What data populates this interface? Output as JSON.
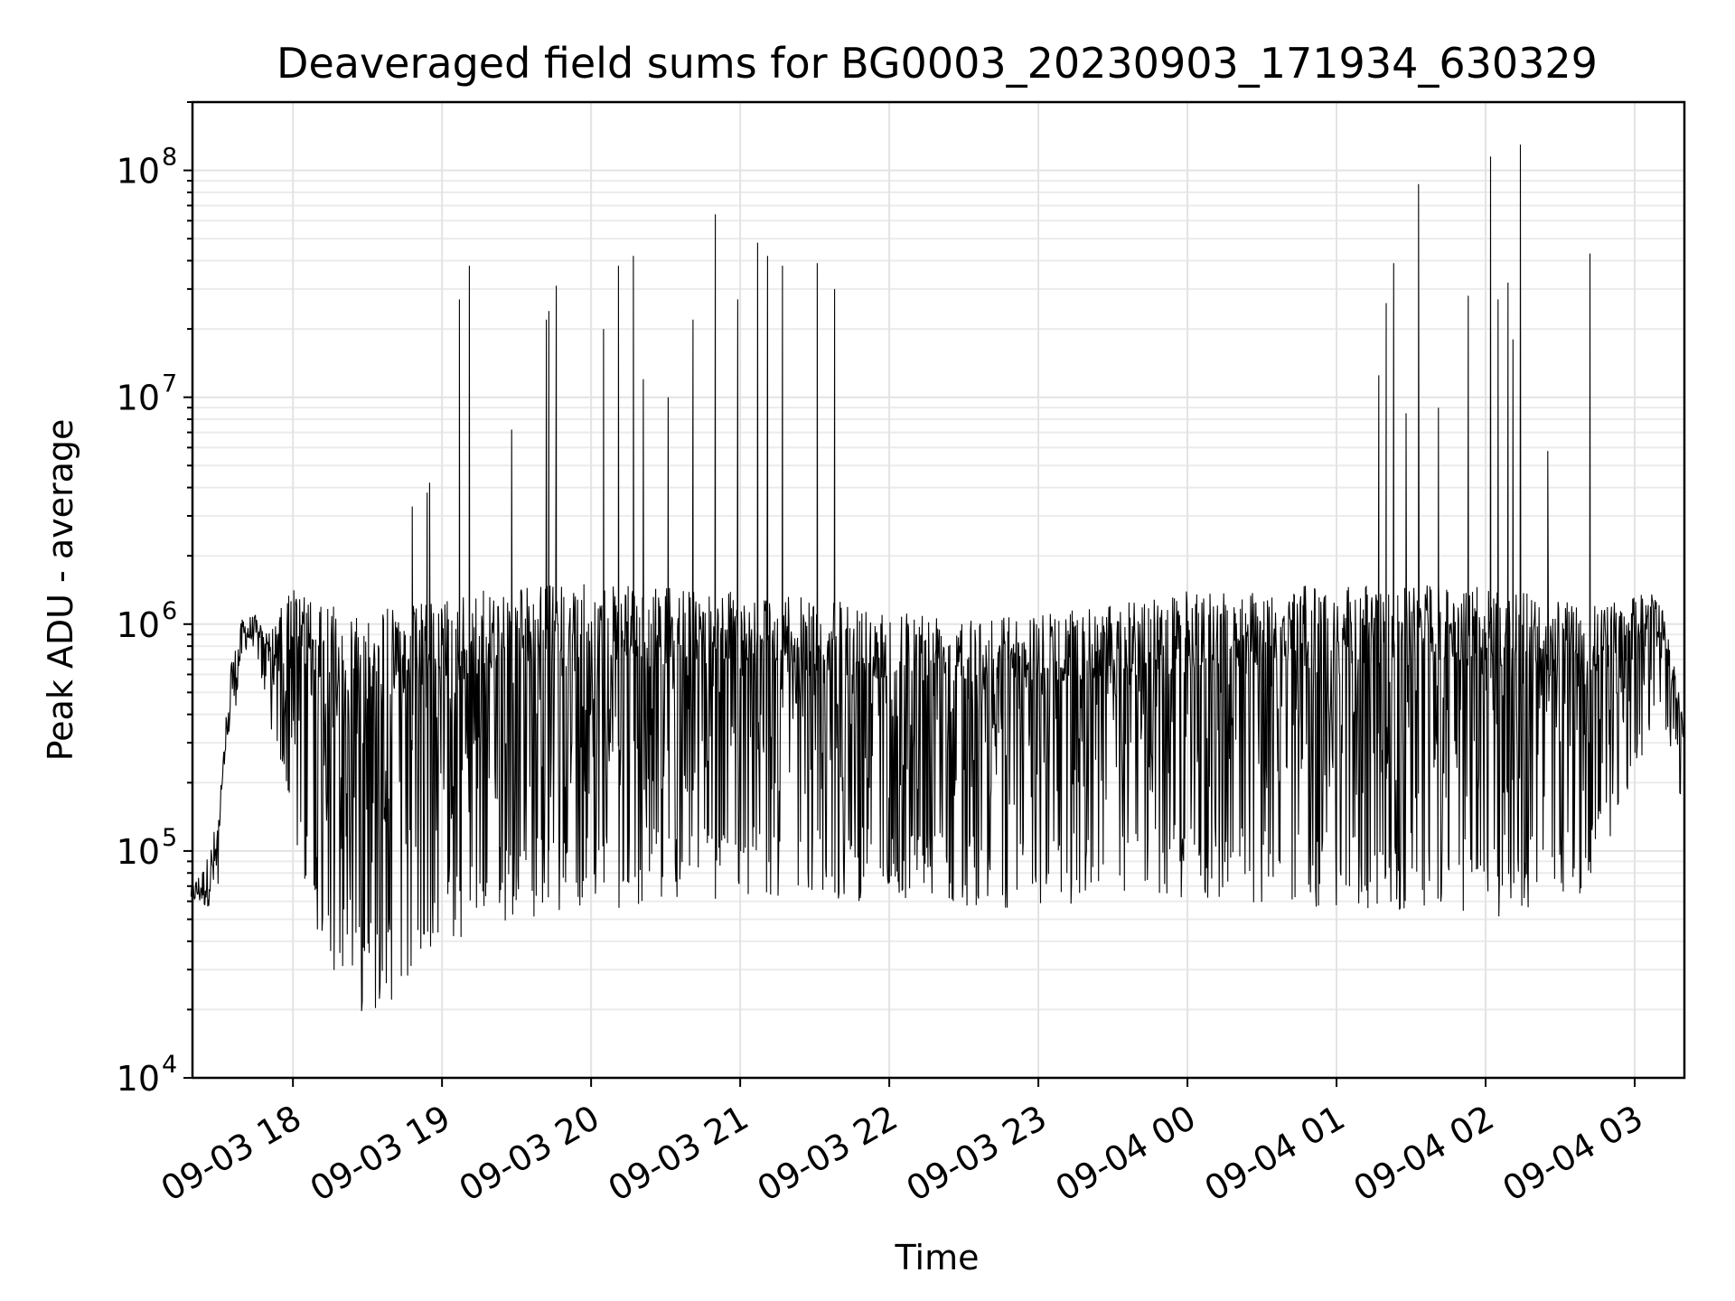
{
  "chart_data": {
    "type": "line",
    "title": "Deaveraged field sums for BG0003_20230903_171934_630329",
    "xlabel": "Time",
    "ylabel": "Peak ADU - average",
    "yscale": "log",
    "ylim": [
      10000,
      200000000
    ],
    "xlim": [
      "2023-09-03 17:19:34",
      "2023-09-04 03:20:00"
    ],
    "grid": true,
    "x_ticks": [
      {
        "t": "2023-09-03 18:00",
        "label": "09-03 18"
      },
      {
        "t": "2023-09-03 19:00",
        "label": "09-03 19"
      },
      {
        "t": "2023-09-03 20:00",
        "label": "09-03 20"
      },
      {
        "t": "2023-09-03 21:00",
        "label": "09-03 21"
      },
      {
        "t": "2023-09-03 22:00",
        "label": "09-03 22"
      },
      {
        "t": "2023-09-03 23:00",
        "label": "09-03 23"
      },
      {
        "t": "2023-09-04 00:00",
        "label": "09-04 00"
      },
      {
        "t": "2023-09-04 01:00",
        "label": "09-04 01"
      },
      {
        "t": "2023-09-04 02:00",
        "label": "09-04 02"
      },
      {
        "t": "2023-09-04 03:00",
        "label": "09-04 03"
      }
    ],
    "y_ticks": [
      {
        "value": 10000,
        "base": "10",
        "exp": "4"
      },
      {
        "value": 100000,
        "base": "10",
        "exp": "5"
      },
      {
        "value": 1000000,
        "base": "10",
        "exp": "6"
      },
      {
        "value": 10000000,
        "base": "10",
        "exp": "7"
      },
      {
        "value": 100000000,
        "base": "10",
        "exp": "8"
      }
    ],
    "line_color": "#000000",
    "series": [
      {
        "envelope": [
          {
            "t": "2023-09-03 17:19",
            "low": 60000,
            "high": 70000
          },
          {
            "t": "2023-09-03 17:25",
            "low": 55000,
            "high": 90000
          },
          {
            "t": "2023-09-03 17:30",
            "low": 65000,
            "high": 150000
          },
          {
            "t": "2023-09-03 17:35",
            "low": 300000,
            "high": 700000
          },
          {
            "t": "2023-09-03 17:40",
            "low": 750000,
            "high": 1100000
          },
          {
            "t": "2023-09-03 17:45",
            "low": 800000,
            "high": 1100000
          },
          {
            "t": "2023-09-03 17:50",
            "low": 350000,
            "high": 900000
          },
          {
            "t": "2023-09-03 18:00",
            "low": 120000,
            "high": 1500000
          },
          {
            "t": "2023-09-03 18:10",
            "low": 40000,
            "high": 1200000
          },
          {
            "t": "2023-09-03 18:20",
            "low": 25000,
            "high": 1200000
          },
          {
            "t": "2023-09-03 18:30",
            "low": 18000,
            "high": 1200000
          },
          {
            "t": "2023-09-03 18:40",
            "low": 22000,
            "high": 1200000
          },
          {
            "t": "2023-09-03 19:00",
            "low": 35000,
            "high": 1300000
          },
          {
            "t": "2023-09-03 19:30",
            "low": 50000,
            "high": 1500000
          },
          {
            "t": "2023-09-03 20:00",
            "low": 55000,
            "high": 1500000
          },
          {
            "t": "2023-09-03 21:00",
            "low": 60000,
            "high": 1400000
          },
          {
            "t": "2023-09-03 22:00",
            "low": 60000,
            "high": 1200000
          },
          {
            "t": "2023-09-03 23:00",
            "low": 55000,
            "high": 1100000
          },
          {
            "t": "2023-09-04 00:00",
            "low": 60000,
            "high": 1400000
          },
          {
            "t": "2023-09-04 01:00",
            "low": 55000,
            "high": 1500000
          },
          {
            "t": "2023-09-04 02:00",
            "low": 50000,
            "high": 1500000
          },
          {
            "t": "2023-09-04 02:40",
            "low": 60000,
            "high": 1200000
          },
          {
            "t": "2023-09-04 03:10",
            "low": 400000,
            "high": 1400000
          },
          {
            "t": "2023-09-04 03:20",
            "low": 150000,
            "high": 400000
          }
        ],
        "spikes": [
          {
            "t": "2023-09-03 18:48",
            "value": 3300000
          },
          {
            "t": "2023-09-03 18:54",
            "value": 3800000
          },
          {
            "t": "2023-09-03 18:55",
            "value": 4200000
          },
          {
            "t": "2023-09-03 19:07",
            "value": 27000000
          },
          {
            "t": "2023-09-03 19:11",
            "value": 38000000
          },
          {
            "t": "2023-09-03 19:28",
            "value": 7200000
          },
          {
            "t": "2023-09-03 19:42",
            "value": 22000000
          },
          {
            "t": "2023-09-03 19:43",
            "value": 24000000
          },
          {
            "t": "2023-09-03 19:46",
            "value": 31000000
          },
          {
            "t": "2023-09-03 20:05",
            "value": 20000000
          },
          {
            "t": "2023-09-03 20:11",
            "value": 38000000
          },
          {
            "t": "2023-09-03 20:17",
            "value": 42000000
          },
          {
            "t": "2023-09-03 20:21",
            "value": 12000000
          },
          {
            "t": "2023-09-03 20:31",
            "value": 10000000
          },
          {
            "t": "2023-09-03 20:41",
            "value": 22000000
          },
          {
            "t": "2023-09-03 20:50",
            "value": 64000000
          },
          {
            "t": "2023-09-03 20:59",
            "value": 27000000
          },
          {
            "t": "2023-09-03 21:07",
            "value": 48000000
          },
          {
            "t": "2023-09-03 21:11",
            "value": 42000000
          },
          {
            "t": "2023-09-03 21:17",
            "value": 38000000
          },
          {
            "t": "2023-09-03 21:31",
            "value": 39000000
          },
          {
            "t": "2023-09-03 21:38",
            "value": 30000000
          },
          {
            "t": "2023-09-04 01:17",
            "value": 12500000
          },
          {
            "t": "2023-09-04 01:20",
            "value": 26000000
          },
          {
            "t": "2023-09-04 01:23",
            "value": 39000000
          },
          {
            "t": "2023-09-04 01:28",
            "value": 8500000
          },
          {
            "t": "2023-09-04 01:33",
            "value": 87000000
          },
          {
            "t": "2023-09-04 01:41",
            "value": 9000000
          },
          {
            "t": "2023-09-04 01:53",
            "value": 28000000
          },
          {
            "t": "2023-09-04 02:02",
            "value": 115000000
          },
          {
            "t": "2023-09-04 02:05",
            "value": 27000000
          },
          {
            "t": "2023-09-04 02:09",
            "value": 32000000
          },
          {
            "t": "2023-09-04 02:11",
            "value": 18000000
          },
          {
            "t": "2023-09-04 02:14",
            "value": 130000000
          },
          {
            "t": "2023-09-04 02:25",
            "value": 5800000
          },
          {
            "t": "2023-09-04 02:42",
            "value": 43000000
          }
        ]
      }
    ]
  }
}
